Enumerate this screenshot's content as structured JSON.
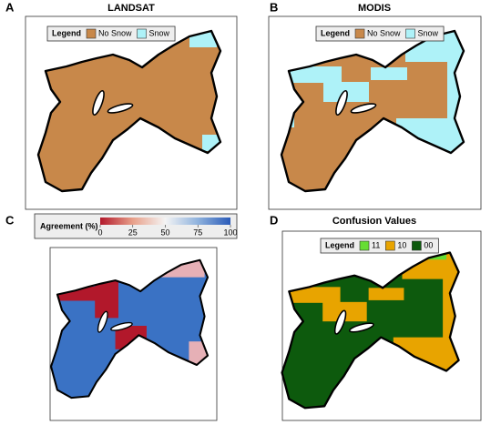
{
  "panels": [
    {
      "label": "A",
      "title": "LANDSAT",
      "legend": {
        "title": "Legend",
        "items": [
          {
            "label": "No Snow",
            "color": "#c8884a"
          },
          {
            "label": "Snow",
            "color": "#aef2f8"
          }
        ]
      }
    },
    {
      "label": "B",
      "title": "MODIS",
      "legend": {
        "title": "Legend",
        "items": [
          {
            "label": "No Snow",
            "color": "#c8884a"
          },
          {
            "label": "Snow",
            "color": "#aef2f8"
          }
        ]
      }
    },
    {
      "label": "C",
      "colorbar": {
        "title": "Agreement (%)",
        "lim": [
          0,
          100
        ],
        "ticks": [
          0,
          25,
          50,
          75,
          100
        ]
      }
    },
    {
      "label": "D",
      "title": "Confusion Values",
      "legend": {
        "title": "Legend",
        "items": [
          {
            "label": "11",
            "color": "#66dd33"
          },
          {
            "label": "10",
            "color": "#e8a400"
          },
          {
            "label": "00",
            "color": "#0d5a0d"
          }
        ]
      }
    }
  ]
}
